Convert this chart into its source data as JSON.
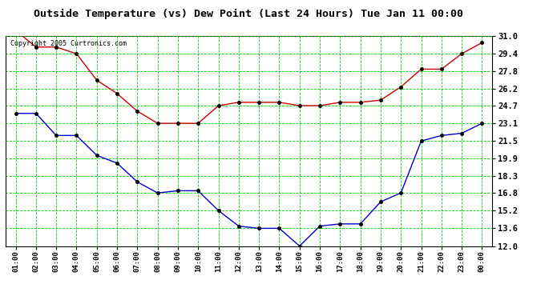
{
  "title": "Outside Temperature (vs) Dew Point (Last 24 Hours) Tue Jan 11 00:00",
  "copyright": "Copyright 2005 Curtronics.com",
  "x_labels": [
    "01:00",
    "02:00",
    "03:00",
    "04:00",
    "05:00",
    "06:00",
    "07:00",
    "08:00",
    "09:00",
    "10:00",
    "11:00",
    "12:00",
    "13:00",
    "14:00",
    "15:00",
    "16:00",
    "17:00",
    "18:00",
    "19:00",
    "20:00",
    "21:00",
    "22:00",
    "23:00",
    "00:00"
  ],
  "temp_data": [
    31.5,
    30.0,
    30.0,
    29.4,
    27.0,
    25.8,
    24.2,
    23.1,
    23.1,
    23.1,
    24.7,
    25.0,
    25.0,
    25.0,
    24.7,
    24.7,
    25.0,
    25.0,
    25.2,
    26.4,
    28.0,
    28.0,
    29.4,
    30.4
  ],
  "dew_data": [
    24.0,
    24.0,
    22.0,
    22.0,
    20.2,
    19.5,
    17.8,
    16.8,
    17.0,
    17.0,
    15.2,
    13.8,
    13.6,
    13.6,
    12.0,
    13.8,
    14.0,
    14.0,
    16.0,
    16.8,
    21.5,
    22.0,
    22.2,
    23.1
  ],
  "temp_color": "#cc0000",
  "dew_color": "#0000cc",
  "bg_color": "#ffffff",
  "plot_bg_color": "#ffffff",
  "grid_color": "#00cc00",
  "ymin": 12.0,
  "ymax": 31.0,
  "yticks": [
    12.0,
    13.6,
    15.2,
    16.8,
    18.3,
    19.9,
    21.5,
    23.1,
    24.7,
    26.2,
    27.8,
    29.4,
    31.0
  ]
}
